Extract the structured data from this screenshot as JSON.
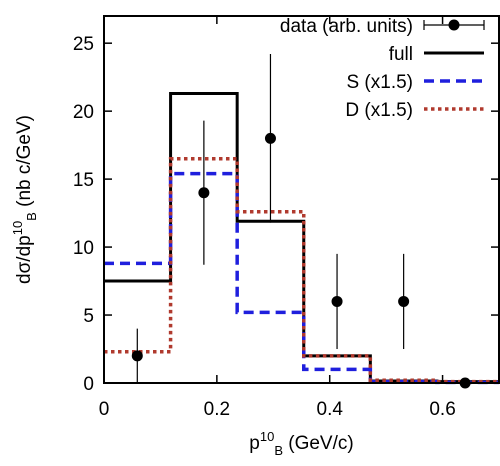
{
  "chart_data": {
    "type": "step",
    "xlabel": {
      "main": "p",
      "sup": "10",
      "sub": "B",
      "unit": " (GeV/c)"
    },
    "ylabel": {
      "main": "dσ/dp",
      "sup": "10",
      "sub": "B",
      "unit": " (nb c/GeV)"
    },
    "xlim": [
      0,
      0.7
    ],
    "ylim": [
      0,
      27
    ],
    "x_ticks": [
      0,
      0.2,
      0.4,
      0.6
    ],
    "x_tick_labels": [
      "0",
      "0.2",
      "0.4",
      "0.6"
    ],
    "y_ticks": [
      0,
      5,
      10,
      15,
      20,
      25
    ],
    "y_tick_labels": [
      "0",
      "5",
      "10",
      "15",
      "20",
      "25"
    ],
    "grid": false,
    "legend_position": "top-right",
    "bin_edges": [
      0,
      0.118,
      0.236,
      0.354,
      0.472,
      0.59,
      0.7
    ],
    "series": [
      {
        "name": "full",
        "style": "solid",
        "color": "#000000",
        "values": [
          7.5,
          21.3,
          11.9,
          2.0,
          0.15,
          0.1
        ]
      },
      {
        "name": "S (x1.5)",
        "style": "dashed",
        "color": "#1f1fdd",
        "values": [
          8.8,
          15.4,
          5.2,
          1.0,
          0.1,
          0.05
        ]
      },
      {
        "name": "D (x1.5)",
        "style": "dotted",
        "color": "#b03a2e",
        "values": [
          2.3,
          16.5,
          12.6,
          2.0,
          0.2,
          0.1
        ]
      }
    ],
    "points": {
      "name": "data (arb. units)",
      "color": "#000000",
      "x": [
        0.059,
        0.177,
        0.295,
        0.413,
        0.531,
        0.64
      ],
      "y": [
        2.0,
        14.0,
        18.0,
        6.0,
        6.0,
        0.0
      ],
      "err": [
        2.0,
        5.3,
        6.2,
        3.5,
        3.5,
        0.0
      ]
    }
  }
}
